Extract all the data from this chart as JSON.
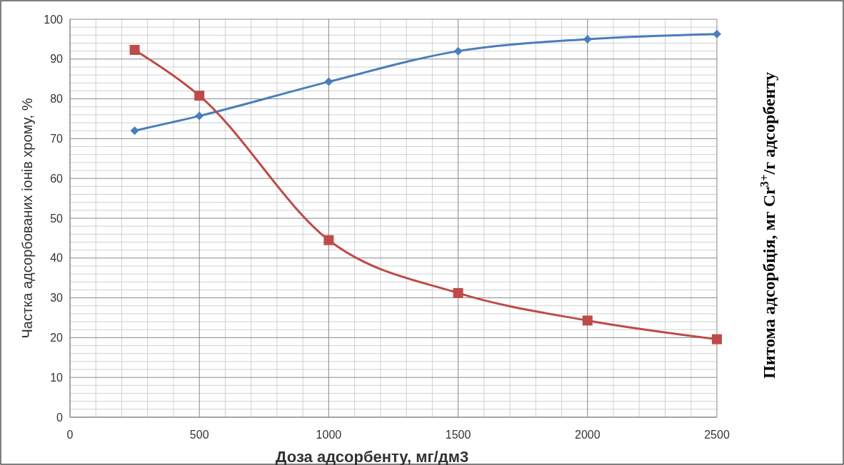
{
  "chart_data": {
    "type": "line",
    "xlabel": "Доза адсорбенту, мг/дм3",
    "ylabel": "Частка адсорбованих іонів хрому, %",
    "y2label": "Питома адсорбція, мг Cr$^{3+}$/г адсорбенту",
    "x": [
      250,
      500,
      1000,
      1500,
      2000,
      2500
    ],
    "series": [
      {
        "color": "#4a7ebb",
        "marker": "diamond",
        "values": [
          72,
          75.7,
          84.3,
          92,
          95,
          96.3
        ]
      },
      {
        "color": "#be4b48",
        "marker": "square",
        "values": [
          92.3,
          80.8,
          44.5,
          31.2,
          24.3,
          19.6
        ]
      }
    ],
    "xlim": [
      0,
      2500
    ],
    "xticks": [
      0,
      500,
      1000,
      1500,
      2000,
      2500
    ],
    "ylim": [
      0,
      100
    ],
    "yticks": [
      0,
      10,
      20,
      30,
      40,
      50,
      60,
      70,
      80,
      90,
      100
    ],
    "grid": true
  }
}
